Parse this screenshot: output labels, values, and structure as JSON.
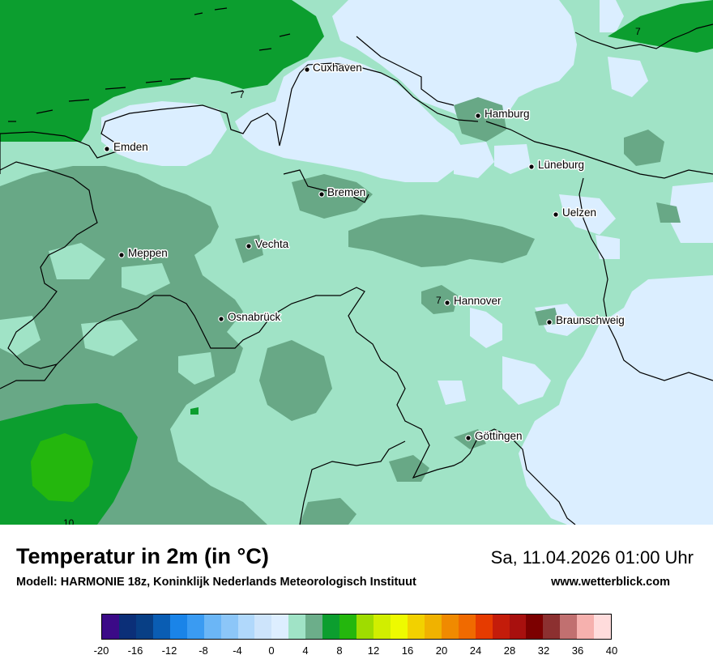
{
  "header": {
    "title": "Temperatur in 2m (in °C)",
    "datetime": "Sa, 11.04.2026 01:00 Uhr",
    "model": "Modell: HARMONIE 18z, Koninklijk Nederlands Meteorologisch Instituut",
    "website": "www.wetterblick.com"
  },
  "map": {
    "cities": [
      {
        "name": "Cuxhaven"
      },
      {
        "name": "Hamburg"
      },
      {
        "name": "Emden"
      },
      {
        "name": "Lüneburg"
      },
      {
        "name": "Bremen"
      },
      {
        "name": "Uelzen"
      },
      {
        "name": "Vechta"
      },
      {
        "name": "Meppen"
      },
      {
        "name": "Hannover"
      },
      {
        "name": "Osnabrück"
      },
      {
        "name": "Braunschweig"
      },
      {
        "name": "Göttingen"
      }
    ],
    "contour_labels": [
      "7",
      "7",
      "7",
      "10"
    ]
  },
  "legend": {
    "tick_labels": [
      "-20",
      "-16",
      "-12",
      "-8",
      "-4",
      "0",
      "4",
      "8",
      "12",
      "16",
      "20",
      "24",
      "28",
      "32",
      "36",
      "40"
    ],
    "colors": [
      "#3b0a87",
      "#0b2f78",
      "#083f85",
      "#0a5db3",
      "#1a84e8",
      "#3a9bf2",
      "#6bb6f6",
      "#8cc6f8",
      "#b0d8fb",
      "#cde4fb",
      "#ddeeff",
      "#a0e3c6",
      "#6cae8a",
      "#0c9e2f",
      "#24b70d",
      "#9fdc00",
      "#d1ee00",
      "#eefa00",
      "#f2d100",
      "#f0b200",
      "#f08a00",
      "#f06a00",
      "#e63b00",
      "#c41c0a",
      "#a8100e",
      "#7c0000",
      "#8c3030",
      "#c17070",
      "#f6b1ae",
      "#ffdcdc"
    ]
  }
}
